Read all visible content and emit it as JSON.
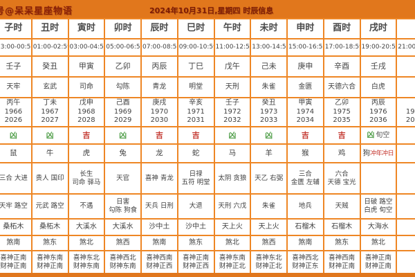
{
  "topbar": {
    "watermark": "号@呆呆星座物语",
    "title": "2024年10月31日,星期四 时辰信息"
  },
  "colors": {
    "header_bg": "#e1771c",
    "grid_border": "#ee8624",
    "header_text": "#7d1c06",
    "cell_text": "#414141",
    "auspicious_red": "#c43a32",
    "inauspicious_green": "#55a14e"
  },
  "columns": [
    {
      "hour": "子时",
      "time": "23:00-00:59",
      "ganzhi": "壬子",
      "zhishen": "天牢",
      "chong": "丙午\n1966 2026",
      "luck": "凶",
      "luck_class": "bad",
      "luck_extra": "",
      "animal": "鼠",
      "animal_extra": "",
      "jishen": "三合 大进",
      "xiongshen": "天牢 路空",
      "nayin": "桑柘木",
      "sha": "煞南",
      "xicai": "喜神正南\n财神正南",
      "clipped": false
    },
    {
      "hour": "丑时",
      "time": "01:00-02:59",
      "ganzhi": "癸丑",
      "zhishen": "玄武",
      "chong": "丁未\n1967 2027",
      "luck": "凶",
      "luck_class": "bad",
      "luck_extra": "",
      "animal": "牛",
      "animal_extra": "",
      "jishen": "贵人 国印",
      "xiongshen": "元武 路空",
      "nayin": "桑柘木",
      "sha": "煞东",
      "xicai": "喜神东南\n财神正南",
      "clipped": false
    },
    {
      "hour": "寅时",
      "time": "03:00-04:59",
      "ganzhi": "甲寅",
      "zhishen": "司命",
      "chong": "戊申\n1968 2028",
      "luck": "吉",
      "luck_class": "good",
      "luck_extra": "",
      "animal": "虎",
      "animal_extra": "",
      "jishen": "长生\n司命 驿马",
      "xiongshen": "不遇",
      "nayin": "大溪水",
      "sha": "煞北",
      "xicai": "喜神东北\n财神东南",
      "clipped": false
    },
    {
      "hour": "卯时",
      "time": "05:00-06:59",
      "ganzhi": "乙卯",
      "zhishen": "勾陈",
      "chong": "己酉\n1969 2029",
      "luck": "凶",
      "luck_class": "bad",
      "luck_extra": "",
      "animal": "兔",
      "animal_extra": "",
      "jishen": "天官",
      "xiongshen": "日害\n勾陈 狗食",
      "nayin": "大溪水",
      "sha": "煞西",
      "xicai": "喜神西北\n财神东南",
      "clipped": false
    },
    {
      "hour": "辰时",
      "time": "07:00-08:59",
      "ganzhi": "丙辰",
      "zhishen": "青龙",
      "chong": "庚戌\n1970 2030",
      "luck": "吉",
      "luck_class": "good",
      "luck_extra": "",
      "animal": "龙",
      "animal_extra": "",
      "jishen": "喜神 青龙",
      "xiongshen": "天兵 日刑",
      "nayin": "沙中土",
      "sha": "煞南",
      "xicai": "喜神西南\n财神正西",
      "clipped": false
    },
    {
      "hour": "巳时",
      "time": "09:00-10:59",
      "ganzhi": "丁巳",
      "zhishen": "明堂",
      "chong": "辛亥\n1971 2031",
      "luck": "吉",
      "luck_class": "good",
      "luck_extra": "",
      "animal": "蛇",
      "animal_extra": "",
      "jishen": "日禄\n五符 明堂",
      "xiongshen": "大退",
      "nayin": "沙中土",
      "sha": "煞东",
      "xicai": "喜神正南\n财神正西",
      "clipped": false
    },
    {
      "hour": "午时",
      "time": "11:00-12:59",
      "ganzhi": "戊午",
      "zhishen": "天刑",
      "chong": "壬子\n1972 2032",
      "luck": "凶",
      "luck_class": "bad",
      "luck_extra": "",
      "animal": "马",
      "animal_extra": "",
      "jishen": "太阴 贪狼",
      "xiongshen": "天刑 六戊",
      "nayin": "天上火",
      "sha": "煞北",
      "xicai": "喜神东南\n财神正北",
      "clipped": false
    },
    {
      "hour": "未时",
      "time": "13:00-14:59",
      "ganzhi": "己未",
      "zhishen": "朱雀",
      "chong": "癸丑\n1973 2033",
      "luck": "凶",
      "luck_class": "bad",
      "luck_extra": "",
      "animal": "羊",
      "animal_extra": "",
      "jishen": "天乙 右弼",
      "xiongshen": "朱雀",
      "nayin": "天上火",
      "sha": "煞西",
      "xicai": "喜神东北\n财神正北",
      "clipped": false
    },
    {
      "hour": "申时",
      "time": "15:00-16:59",
      "ganzhi": "庚申",
      "zhishen": "金匮",
      "chong": "甲寅\n1974 2034",
      "luck": "吉",
      "luck_class": "good",
      "luck_extra": "",
      "animal": "猴",
      "animal_extra": "",
      "jishen": "三合\n金匮 左辅",
      "xiongshen": "地兵",
      "nayin": "石榴木",
      "sha": "煞南",
      "xicai": "喜神西北\n财神正东",
      "clipped": false
    },
    {
      "hour": "酉时",
      "time": "17:00-18:59",
      "ganzhi": "辛酉",
      "zhishen": "天德六合",
      "chong": "乙卯\n1975 2035",
      "luck": "吉",
      "luck_class": "good",
      "luck_extra": "",
      "animal": "鸡",
      "animal_extra": "",
      "jishen": "六合\n天德 宝光",
      "xiongshen": "天贼",
      "nayin": "石榴木",
      "sha": "煞东",
      "xicai": "喜神西南\n财神正南",
      "clipped": false
    },
    {
      "hour": "戌时",
      "time": "19:00-20:59",
      "ganzhi": "壬戌",
      "zhishen": "白虎",
      "chong": "丙辰\n1976 2036",
      "luck": "凶",
      "luck_class": "bad",
      "luck_extra": "旬空",
      "animal": "狗",
      "animal_extra": "冲年冲日",
      "jishen": "",
      "xiongshen": "日破 路空\n白虎 旬空",
      "nayin": "大海水",
      "sha": "煞北",
      "xicai": "喜神正南\n财神正南",
      "clipped": false
    },
    {
      "hour": "",
      "time": "21:00-22:59",
      "ganzhi": "",
      "zhishen": "",
      "chong": "\n1977 2037",
      "luck": "",
      "luck_class": "",
      "luck_extra": "",
      "animal": "",
      "animal_extra": "",
      "jishen": "",
      "xiongshen": "",
      "nayin": "",
      "sha": "",
      "xicai": "",
      "clipped": true
    }
  ]
}
